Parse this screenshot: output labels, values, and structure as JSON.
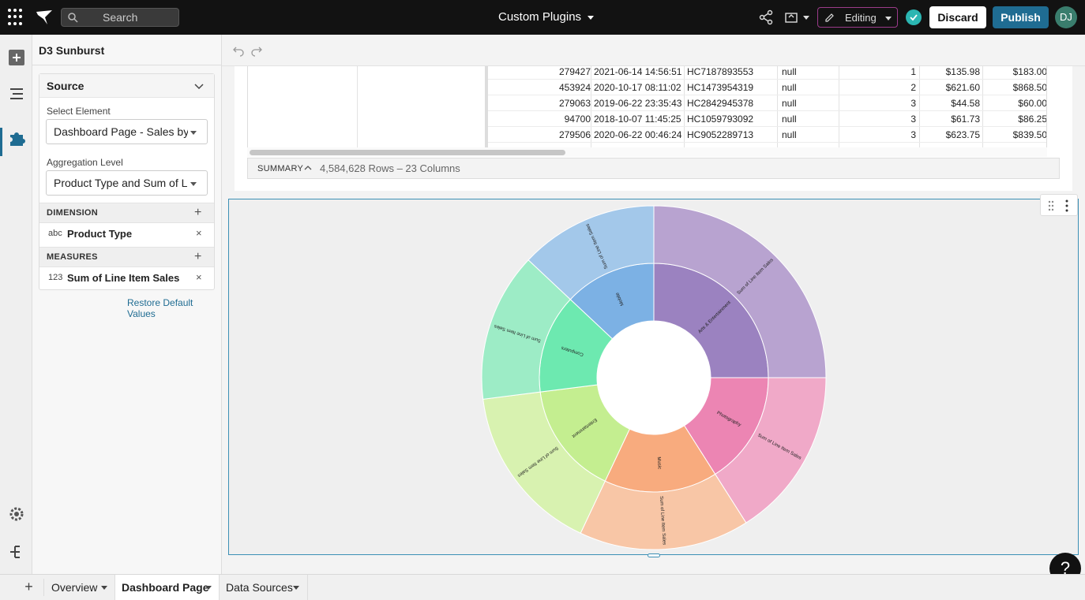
{
  "topbar": {
    "search_label": "Search",
    "title": "Custom Plugins",
    "mode_label": "Editing",
    "discard_label": "Discard",
    "publish_label": "Publish",
    "avatar_initials": "DJ"
  },
  "panel": {
    "title": "D3 Sunburst",
    "source_label": "Source",
    "select_element_label": "Select Element",
    "select_element_value": "Dashboard Page - Sales by Product Type",
    "aggregation_label": "Aggregation Level",
    "aggregation_value": "Product Type and Sum of Line Item Sales",
    "dimension_label": "DIMENSION",
    "dimension_type": "abc",
    "dimension_name": "Product Type",
    "measures_label": "MEASURES",
    "measure_type": "123",
    "measure_name": "Sum of Line Item Sales",
    "restore_label": "Restore Default Values"
  },
  "table": {
    "rows": [
      {
        "id": "279427",
        "date": "2021-06-14 14:56:51",
        "code": "HC7187893553",
        "flag": "null",
        "qty": "1",
        "cost": "$135.98",
        "price": "$183.00"
      },
      {
        "id": "453924",
        "date": "2020-10-17 08:11:02",
        "code": "HC1473954319",
        "flag": "null",
        "qty": "2",
        "cost": "$621.60",
        "price": "$868.50"
      },
      {
        "id": "279063",
        "date": "2019-06-22 23:35:43",
        "code": "HC2842945378",
        "flag": "null",
        "qty": "3",
        "cost": "$44.58",
        "price": "$60.00"
      },
      {
        "id": "94700",
        "date": "2018-10-07 11:45:25",
        "code": "HC1059793092",
        "flag": "null",
        "qty": "3",
        "cost": "$61.73",
        "price": "$86.25"
      },
      {
        "id": "279506",
        "date": "2020-06-22 00:46:24",
        "code": "HC9052289713",
        "flag": "null",
        "qty": "3",
        "cost": "$623.75",
        "price": "$839.50"
      }
    ],
    "summary_label": "SUMMARY",
    "summary_count": "4,584,628 Rows – 23 Columns"
  },
  "tabs": [
    {
      "label": "Overview"
    },
    {
      "label": "Dashboard Page"
    },
    {
      "label": "Data Sources"
    }
  ],
  "help_label": "?",
  "chart_data": {
    "type": "sunburst",
    "center": "",
    "categories": [
      "Arts & Entertainment",
      "Photography",
      "Music",
      "Entertainment",
      "Computers",
      "Mobile"
    ],
    "outer_label": "Sum of Line Item Sales",
    "values": [
      25,
      16,
      16,
      16,
      14,
      13
    ],
    "inner_colors": [
      "#9b82c0",
      "#ec85b3",
      "#f8ab7e",
      "#c4ee90",
      "#6de9b0",
      "#7cb1e4"
    ],
    "outer_colors": [
      "#b8a3d0",
      "#f0a9c8",
      "#f8c6a6",
      "#d8f2b0",
      "#9decc6",
      "#a3c8ea"
    ]
  }
}
